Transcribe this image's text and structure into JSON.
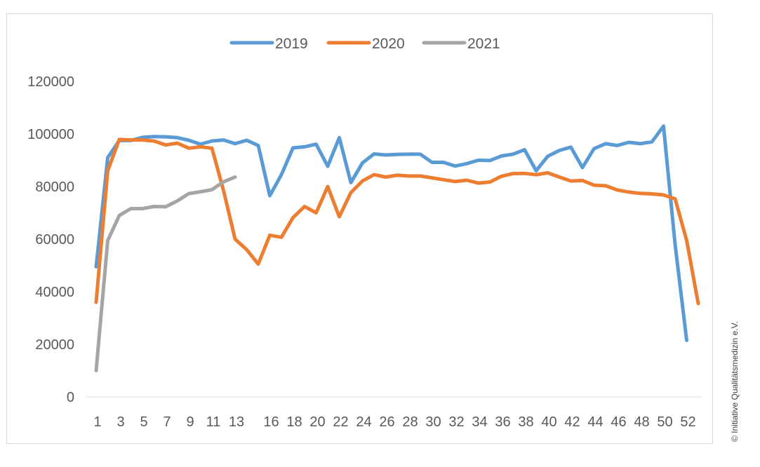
{
  "chart_data": {
    "type": "line",
    "title": "",
    "xlabel": "",
    "ylabel": "",
    "ylim": [
      0,
      120000
    ],
    "y_ticks": [
      "0",
      "20000",
      "40000",
      "60000",
      "80000",
      "100000",
      "120000"
    ],
    "x_tick_labels": [
      "1",
      "3",
      "5",
      "7",
      "9",
      "11",
      "13",
      "16",
      "18",
      "20",
      "22",
      "24",
      "26",
      "28",
      "30",
      "32",
      "34",
      "36",
      "38",
      "40",
      "42",
      "44",
      "46",
      "48",
      "50",
      "52"
    ],
    "grid": false,
    "legend_position": "top",
    "series": [
      {
        "name": "2019",
        "color": "#5b9bd5",
        "values": [
          49500,
          91000,
          97500,
          97500,
          98700,
          99000,
          98900,
          98600,
          97600,
          96100,
          97300,
          97700,
          96300,
          97600,
          95600,
          76500,
          84500,
          94700,
          95100,
          96100,
          87700,
          98600,
          81500,
          89000,
          92400,
          92000,
          92200,
          92300,
          92300,
          89200,
          89200,
          87800,
          88700,
          90000,
          89900,
          91600,
          92300,
          94000,
          86000,
          91500,
          93700,
          95000,
          87200,
          94400,
          96300,
          95600,
          96800,
          96300,
          97000,
          103000,
          58000,
          21500
        ]
      },
      {
        "name": "2020",
        "color": "#ed7d31",
        "values": [
          36000,
          86000,
          97900,
          97700,
          97700,
          97300,
          95800,
          96500,
          94600,
          95100,
          94600,
          78500,
          60000,
          56000,
          50500,
          61500,
          60700,
          68200,
          72400,
          70000,
          80000,
          68500,
          77700,
          82100,
          84500,
          83600,
          84300,
          84000,
          84000,
          83300,
          82600,
          81900,
          82400,
          81300,
          81700,
          83900,
          84900,
          85000,
          84500,
          85200,
          83600,
          82100,
          82300,
          80500,
          80300,
          78700,
          77900,
          77400,
          77200,
          76800,
          75300,
          59500,
          35500
        ]
      },
      {
        "name": "2021",
        "color": "#a5a5a5",
        "values": [
          10000,
          59500,
          69000,
          71600,
          71600,
          72400,
          72300,
          74500,
          77300,
          78000,
          78800,
          81800,
          83600
        ]
      }
    ]
  },
  "copyright": "© Initiative Qualitätsmedizin e.V."
}
